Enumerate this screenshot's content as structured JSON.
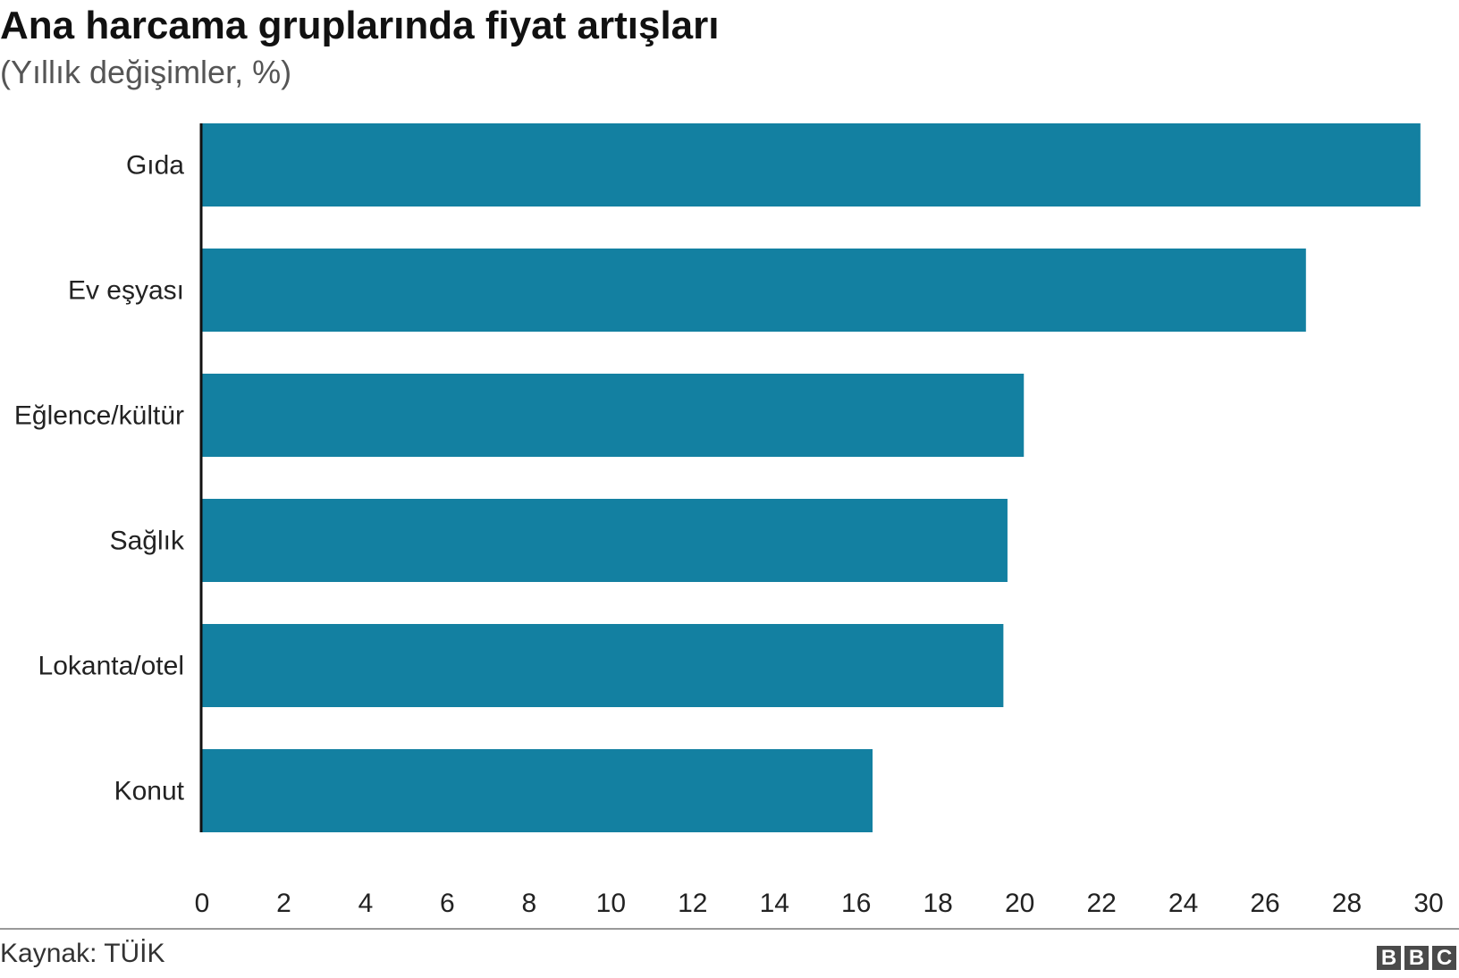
{
  "chart_data": {
    "type": "bar",
    "orientation": "horizontal",
    "title": "Ana harcama gruplarında fiyat artışları",
    "subtitle": "(Yıllık değişimler, %)",
    "categories": [
      "Gıda",
      "Ev eşyası",
      "Eğlence/kültür",
      "Sağlık",
      "Lokanta/otel",
      "Konut"
    ],
    "values": [
      29.8,
      27.0,
      20.1,
      19.7,
      19.6,
      16.4
    ],
    "xlim": [
      0,
      30
    ],
    "xticks": [
      0,
      2,
      4,
      6,
      8,
      10,
      12,
      14,
      16,
      18,
      20,
      22,
      24,
      26,
      28,
      30
    ],
    "bar_color": "#1380a1",
    "grid": false
  },
  "footer": {
    "source": "Kaynak: TÜİK",
    "logo": "BBC"
  }
}
